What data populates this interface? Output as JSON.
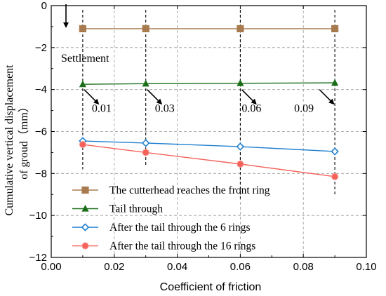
{
  "chart_data": {
    "type": "line",
    "xlabel": "Coefficient of friction",
    "ylabel_line1": "Cumulative vertical displacement",
    "ylabel_line2": "of groud（mm）",
    "xlim": [
      0.0,
      0.1
    ],
    "ylim": [
      -12,
      0
    ],
    "x_ticks": [
      "0.00",
      "0.02",
      "0.04",
      "0.06",
      "0.08",
      "0.10"
    ],
    "y_ticks": [
      "0",
      "−2",
      "−4",
      "−6",
      "−8",
      "−10",
      "−12"
    ],
    "grid": true,
    "x": [
      0.01,
      0.03,
      0.06,
      0.09
    ],
    "series": [
      {
        "name": "The cutterhead reaches the front ring",
        "values": [
          -1.1,
          -1.1,
          -1.1,
          -1.1
        ],
        "color": "#a87b4f",
        "marker": "square"
      },
      {
        "name": "Tail through",
        "values": [
          -3.75,
          -3.72,
          -3.7,
          -3.68
        ],
        "color": "#1a6e1a",
        "marker": "triangle"
      },
      {
        "name": "After the tail through the 6 rings",
        "values": [
          -6.45,
          -6.55,
          -6.72,
          -6.95
        ],
        "color": "#1f7fcf",
        "marker": "diamond"
      },
      {
        "name": "After the tail through the 16 rings",
        "values": [
          -6.62,
          -7.0,
          -7.55,
          -8.15
        ],
        "color": "#f5625a",
        "marker": "circle"
      }
    ],
    "annotations": {
      "settlement_label": "Settlement",
      "friction_labels": [
        "0.01",
        "0.03",
        "0.06",
        "0.09"
      ]
    }
  }
}
